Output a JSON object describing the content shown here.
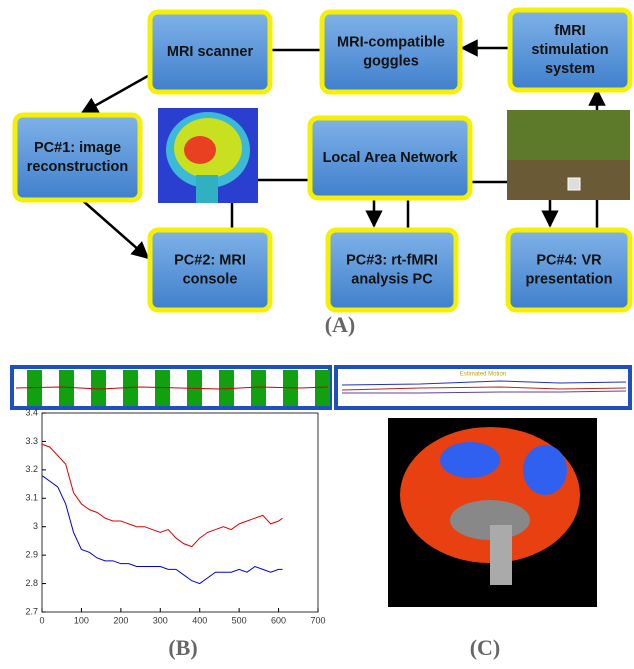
{
  "diagram": {
    "nodes": [
      {
        "lines": [
          "MRI scanner"
        ]
      },
      {
        "lines": [
          "MRI-compatible",
          "goggles"
        ]
      },
      {
        "lines": [
          "fMRI",
          "stimulation",
          "system"
        ]
      },
      {
        "lines": [
          "PC#1: image",
          "reconstruction"
        ]
      },
      {
        "lines": [
          "Local Area Network"
        ]
      },
      {
        "lines": [
          "PC#2: MRI",
          "console"
        ]
      },
      {
        "lines": [
          "PC#3: rt-fMRI",
          "analysis PC"
        ]
      },
      {
        "lines": [
          "PC#4: VR",
          "presentation"
        ]
      }
    ],
    "label": "(A)"
  },
  "motion_strip": {
    "title": "Estimated Motion"
  },
  "chart_data": {
    "type": "line",
    "x": [
      0,
      20,
      40,
      60,
      80,
      100,
      120,
      140,
      160,
      180,
      200,
      220,
      240,
      260,
      280,
      300,
      320,
      340,
      360,
      380,
      400,
      420,
      440,
      460,
      480,
      500,
      520,
      540,
      560,
      580,
      600,
      610
    ],
    "series": [
      {
        "color": "#e00000",
        "values": [
          3.29,
          3.28,
          3.25,
          3.22,
          3.12,
          3.08,
          3.06,
          3.05,
          3.03,
          3.02,
          3.02,
          3.01,
          3.0,
          3.0,
          2.99,
          2.98,
          2.99,
          2.96,
          2.94,
          2.93,
          2.96,
          2.98,
          2.99,
          3.0,
          2.99,
          3.01,
          3.02,
          3.03,
          3.04,
          3.01,
          3.02,
          3.03
        ]
      },
      {
        "color": "#0000e0",
        "values": [
          3.18,
          3.16,
          3.14,
          3.08,
          2.98,
          2.92,
          2.91,
          2.89,
          2.88,
          2.88,
          2.87,
          2.87,
          2.86,
          2.86,
          2.86,
          2.86,
          2.85,
          2.85,
          2.83,
          2.81,
          2.8,
          2.82,
          2.84,
          2.84,
          2.84,
          2.85,
          2.84,
          2.86,
          2.85,
          2.84,
          2.85,
          2.85
        ]
      }
    ],
    "xlim": [
      0,
      700
    ],
    "xticks": [
      0,
      100,
      200,
      300,
      400,
      500,
      600,
      700
    ],
    "ylim": [
      2.7,
      3.4
    ],
    "yticks": [
      2.7,
      2.8,
      2.9,
      3,
      3.1,
      3.2,
      3.3,
      3.4
    ],
    "label": "(B)"
  },
  "panel_c": {
    "label": "(C)"
  }
}
